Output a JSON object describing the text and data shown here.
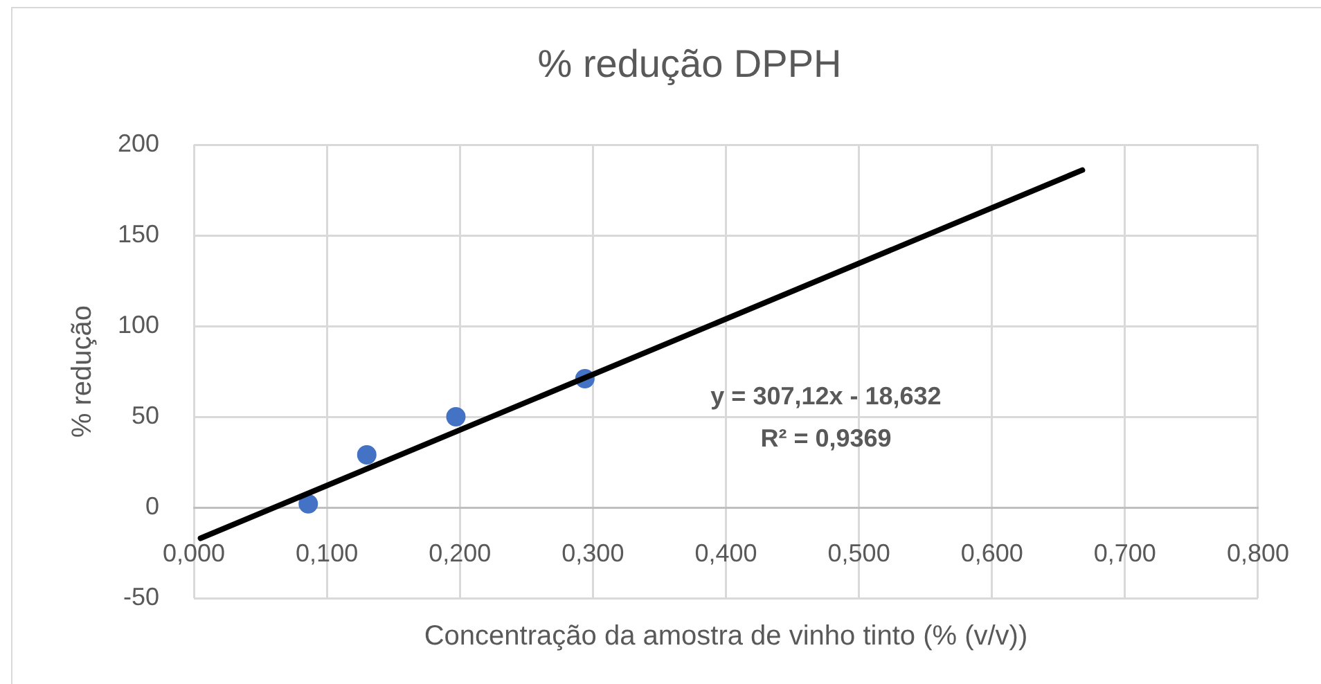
{
  "chart_data": {
    "type": "scatter",
    "title": "% redução DPPH",
    "xlabel": "Concentração da amostra de vinho tinto (% (v/v))",
    "ylabel": "% redução",
    "series": [
      {
        "type": "scatter",
        "color": "#4472c4",
        "marker": "circle",
        "x": [
          0.086,
          0.13,
          0.197,
          0.294
        ],
        "values": [
          2,
          29,
          50,
          71
        ]
      },
      {
        "type": "line",
        "color": "#000000",
        "marker": "none",
        "x": [
          0.005,
          0.668
        ],
        "values": [
          -17,
          186
        ]
      }
    ],
    "xlim": [
      0,
      0.8
    ],
    "xticks": [
      {
        "value": 0,
        "label": "0,000"
      },
      {
        "value": 0.1,
        "label": "0,100"
      },
      {
        "value": 0.2,
        "label": "0,200"
      },
      {
        "value": 0.3,
        "label": "0,300"
      },
      {
        "value": 0.4,
        "label": "0,400"
      },
      {
        "value": 0.5,
        "label": "0,500"
      },
      {
        "value": 0.6,
        "label": "0,600"
      },
      {
        "value": 0.7,
        "label": "0,700"
      },
      {
        "value": 0.8,
        "label": "0,800"
      }
    ],
    "ylim": [
      -50,
      200
    ],
    "yticks": [
      -50,
      0,
      50,
      100,
      150,
      200
    ],
    "grid": true,
    "legend": false,
    "annotations": [
      "y = 307,12x - 18,632",
      "R² = 0,9369"
    ]
  }
}
